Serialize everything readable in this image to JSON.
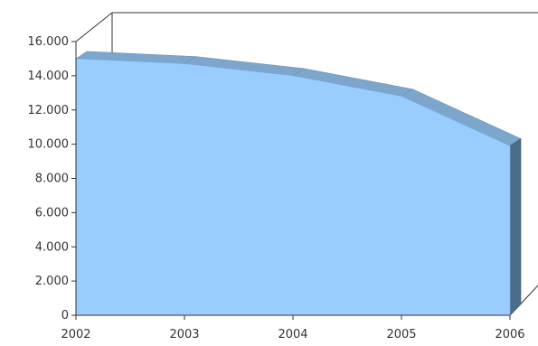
{
  "chart_data": {
    "type": "area",
    "style": "3d",
    "x": [
      "2002",
      "2003",
      "2004",
      "2005",
      "2006"
    ],
    "series": [
      {
        "values": [
          15000,
          14700,
          14000,
          12800,
          9900
        ]
      }
    ],
    "ylim": [
      0,
      16000
    ],
    "y_ticks": [
      "0",
      "2.000",
      "4.000",
      "6.000",
      "8.000",
      "10.000",
      "12.000",
      "14.000",
      "16.000"
    ],
    "grid": false,
    "legend": "none",
    "colors": {
      "front": "#99ccff",
      "top": "#7da6cc",
      "side": "#4d6c8a",
      "axis": "#333333"
    }
  }
}
